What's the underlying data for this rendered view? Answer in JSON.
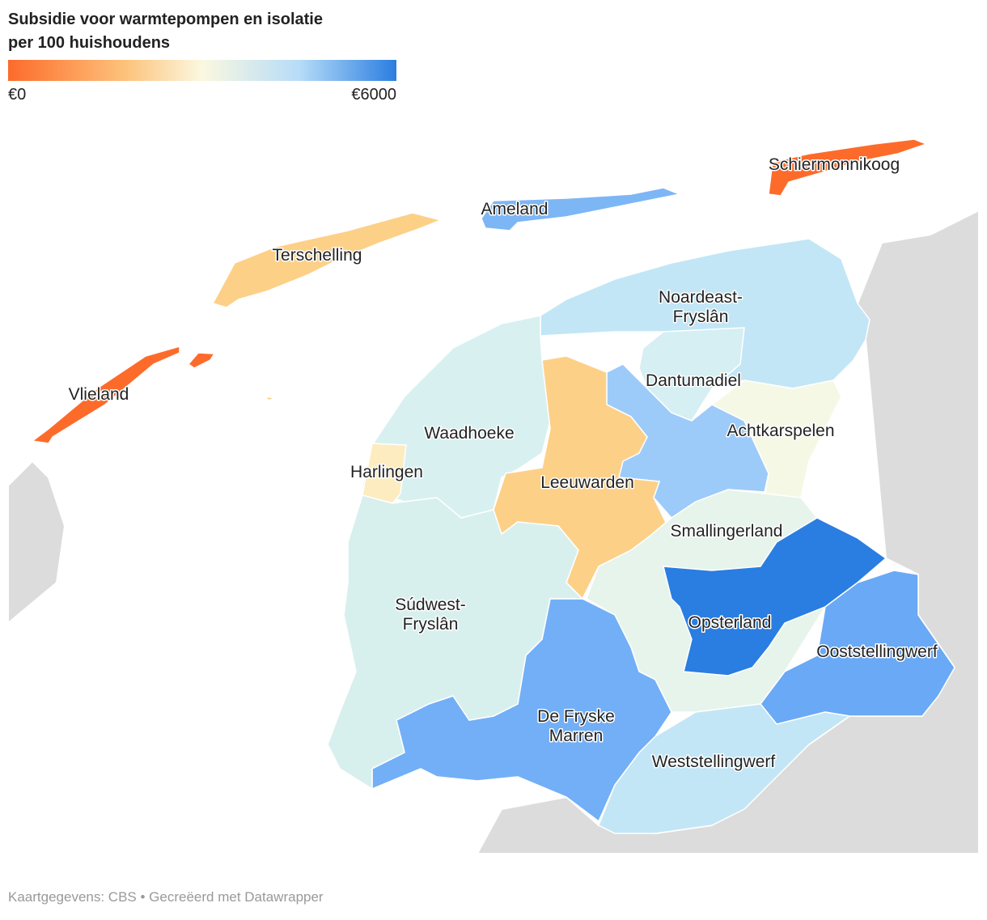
{
  "header": {
    "title_lines": [
      "Subsidie voor warmtepompen en isolatie",
      "per 100 huishoudens"
    ]
  },
  "legend": {
    "min_label": "€0",
    "max_label": "€6000"
  },
  "regions": [
    {
      "name": [
        "Vlieland"
      ],
      "color": "#fd6b2b"
    },
    {
      "name": [
        "Terschelling"
      ],
      "color": "#fdd088"
    },
    {
      "name": [
        "Ameland"
      ],
      "color": "#7db6f5"
    },
    {
      "name": [
        "Schiermonnikoog"
      ],
      "color": "#fd6b2b"
    },
    {
      "name": [
        "Noardeast-",
        "Fryslân"
      ],
      "color": "#c2e6f6"
    },
    {
      "name": [
        "Dantumadiel"
      ],
      "color": "#d5eff3"
    },
    {
      "name": [
        "Waadhoeke"
      ],
      "color": "#d8f0f0"
    },
    {
      "name": [
        "Harlingen"
      ],
      "color": "#fdecc0"
    },
    {
      "name": [
        "Achtkarspelen"
      ],
      "color": "#f6f8e6"
    },
    {
      "name": [
        "Leeuwarden"
      ],
      "color": "#fdd088"
    },
    {
      "name": [
        "Smallingerland"
      ],
      "color": "#e6f4ec"
    },
    {
      "name": [
        "Opsterland"
      ],
      "color": "#2a7de1"
    },
    {
      "name": [
        "Ooststellingwerf"
      ],
      "color": "#6aa9f5"
    },
    {
      "name": [
        "Weststellingwerf"
      ],
      "color": "#c2e6f6"
    },
    {
      "name": [
        "De Fryske",
        "Marren"
      ],
      "color": "#72aff7"
    },
    {
      "name": [
        "Súdwest-",
        "Fryslân"
      ],
      "color": "#d8f0ed"
    }
  ],
  "footer": {
    "source": "Kaartgegevens: CBS • Gecreëerd met Datawrapper"
  }
}
